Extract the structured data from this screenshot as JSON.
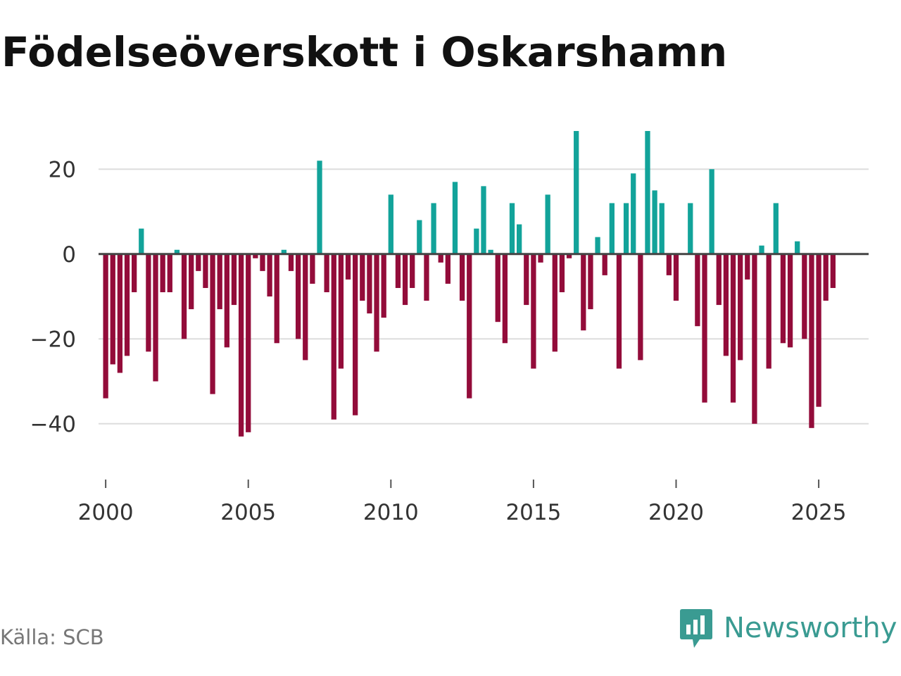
{
  "header": {
    "title": "Födelseöverskott i Oskarshamn"
  },
  "footer": {
    "source": "Källa: SCB",
    "brand": "Newsworthy"
  },
  "colors": {
    "positive": "#12a39a",
    "negative": "#930c3a",
    "grid": "#dddddd",
    "zero_line": "#444444",
    "axis_text": "#333333",
    "brand": "#3a9b92"
  },
  "chart_data": {
    "type": "bar",
    "title": "Födelseöverskott i Oskarshamn",
    "xlabel": "",
    "ylabel": "",
    "ylim": [
      -48,
      30
    ],
    "xlim": [
      1999.75,
      2026.75
    ],
    "x_ticks": [
      2000,
      2005,
      2010,
      2015,
      2020,
      2025
    ],
    "x_tick_labels": [
      "2000",
      "2005",
      "2010",
      "2015",
      "2020",
      "2025"
    ],
    "y_ticks": [
      -40,
      -20,
      0,
      20
    ],
    "y_tick_labels": [
      "−40",
      "−20",
      "0",
      "20"
    ],
    "grid": true,
    "frequency": "quarterly",
    "start_period": "2000Q1",
    "values": [
      -34,
      -26,
      -28,
      -24,
      -9,
      6,
      -23,
      -30,
      -9,
      -9,
      1,
      -20,
      -13,
      -4,
      -8,
      -33,
      -13,
      -22,
      -12,
      -43,
      -42,
      -1,
      -4,
      -10,
      -21,
      1,
      -4,
      -20,
      -25,
      -7,
      22,
      -9,
      -39,
      -27,
      -6,
      -38,
      -11,
      -14,
      -23,
      -15,
      14,
      -8,
      -12,
      -8,
      8,
      -11,
      12,
      -2,
      -7,
      17,
      -11,
      -34,
      6,
      16,
      1,
      -16,
      -21,
      12,
      7,
      -12,
      -27,
      -2,
      14,
      -23,
      -9,
      -1,
      29,
      -18,
      -13,
      4,
      -5,
      12,
      -27,
      12,
      19,
      -25,
      29,
      15,
      12,
      -5,
      -11,
      0,
      12,
      -17,
      -35,
      20,
      -12,
      -24,
      -35,
      -25,
      -6,
      -40,
      2,
      -27,
      12,
      -21,
      -22,
      3,
      -20,
      -41,
      -36,
      -11,
      -8
    ]
  }
}
